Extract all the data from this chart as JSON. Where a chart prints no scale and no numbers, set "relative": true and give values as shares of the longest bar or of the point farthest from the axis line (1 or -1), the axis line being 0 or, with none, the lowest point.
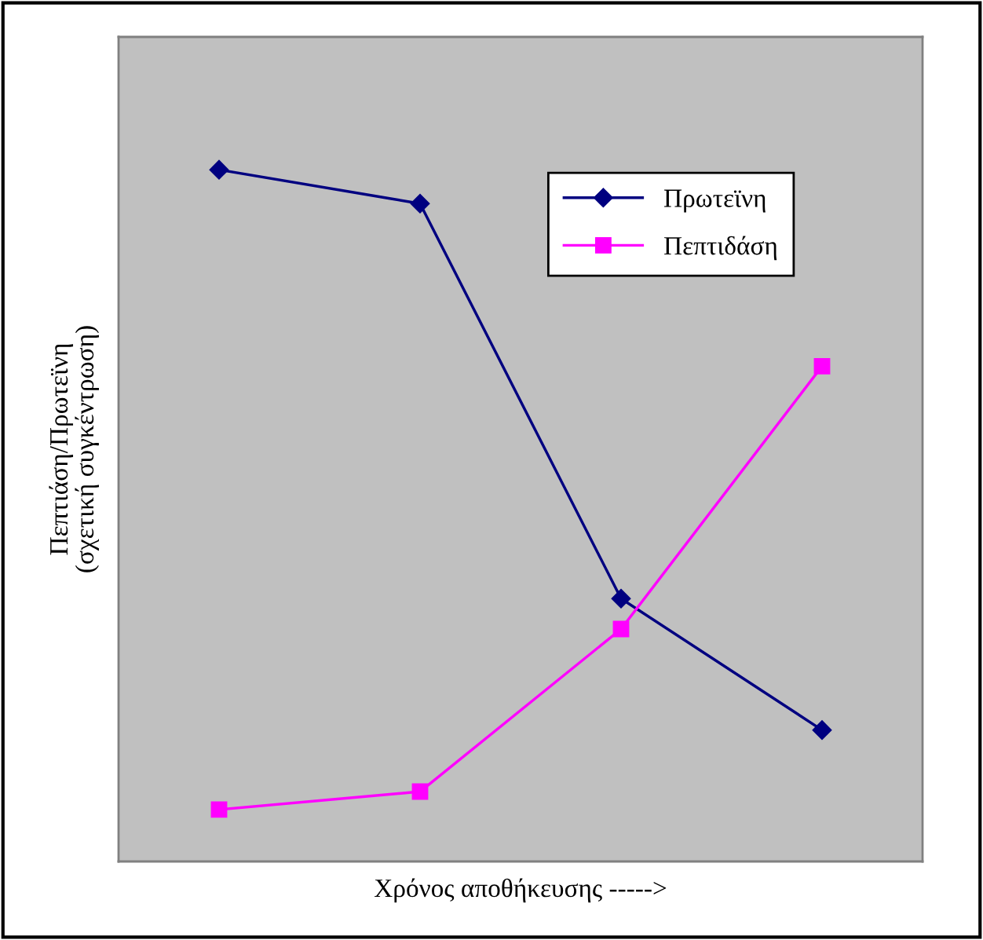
{
  "chart_data": {
    "type": "line",
    "relative": true,
    "xlabel": "Χρόνος αποθήκευσης ----->",
    "ylabel": "Πεπτιάση/Πρωτεϊνη\n(σχετική συγκέντρωση)",
    "categories": [
      null,
      null,
      null,
      null
    ],
    "series": [
      {
        "name": "Πρωτεϊνη",
        "color": "#000080",
        "marker": "diamond",
        "values": [
          1,
          0.951,
          0.38,
          0.19
        ]
      },
      {
        "name": "Πεπτιδάση",
        "color": "#ff00ff",
        "marker": "square",
        "values": [
          0.075,
          0.101,
          0.336,
          0.716
        ]
      }
    ],
    "legend": "top right",
    "grid": false,
    "line_style": "solid"
  }
}
